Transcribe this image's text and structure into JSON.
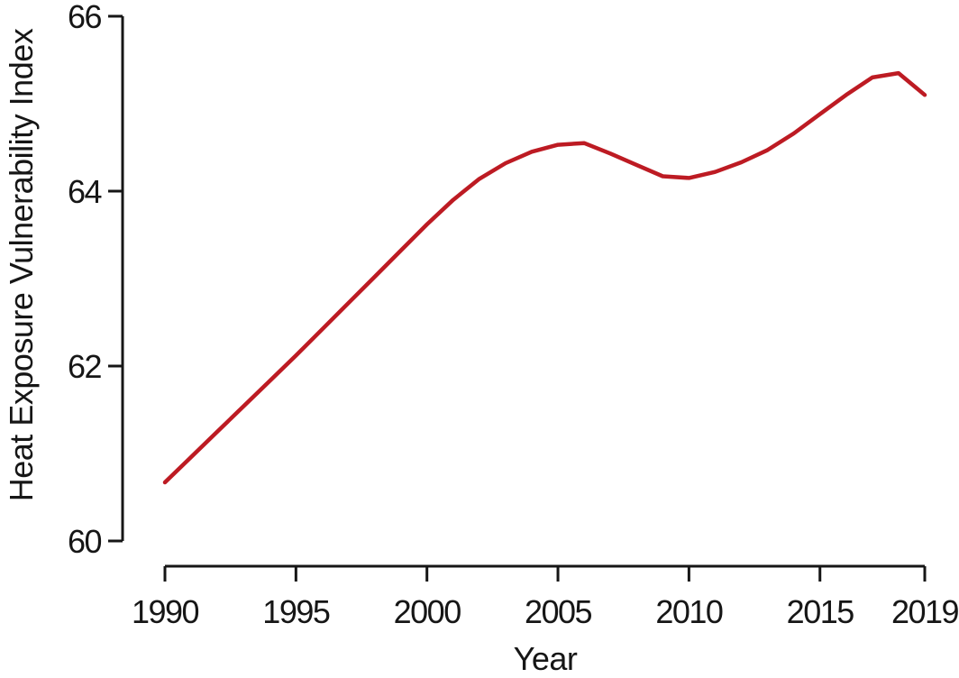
{
  "colors": {
    "line": "#bd1b23",
    "axis": "#161616",
    "text": "#161616",
    "background": "#ffffff"
  },
  "chart_data": {
    "type": "line",
    "title": "",
    "xlabel": "Year",
    "ylabel": "Heat Exposure Vulnerability Index",
    "xlim": [
      1990,
      2019
    ],
    "ylim": [
      60,
      66
    ],
    "xticks": [
      1990,
      1995,
      2000,
      2005,
      2010,
      2015,
      2019
    ],
    "yticks": [
      60,
      62,
      64,
      66
    ],
    "grid": false,
    "legend": null,
    "x": [
      1990,
      1991,
      1992,
      1993,
      1994,
      1995,
      1996,
      1997,
      1998,
      1999,
      2000,
      2001,
      2002,
      2003,
      2004,
      2005,
      2006,
      2007,
      2008,
      2009,
      2010,
      2011,
      2012,
      2013,
      2014,
      2015,
      2016,
      2017,
      2018,
      2019
    ],
    "series": [
      {
        "name": "Heat Exposure Vulnerability Index",
        "color": "#bd1b23",
        "values": [
          60.67,
          60.96,
          61.25,
          61.54,
          61.83,
          62.12,
          62.42,
          62.72,
          63.02,
          63.32,
          63.62,
          63.9,
          64.14,
          64.32,
          64.45,
          64.53,
          64.55,
          64.43,
          64.3,
          64.17,
          64.15,
          64.22,
          64.33,
          64.47,
          64.66,
          64.88,
          65.1,
          65.3,
          65.35,
          65.1
        ]
      }
    ]
  }
}
